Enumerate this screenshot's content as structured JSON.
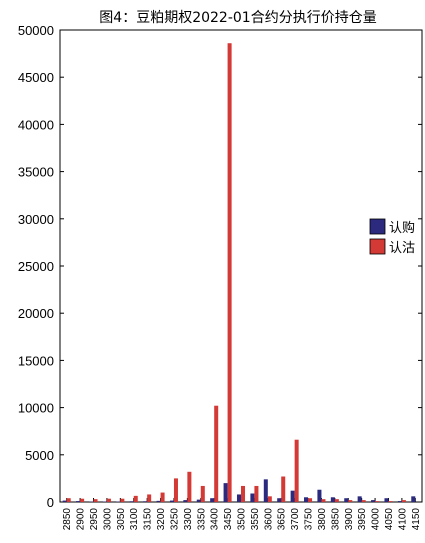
{
  "chart_data": {
    "type": "bar",
    "title": "图4：豆粕期权2022-01合约分执行价持仓量",
    "xlabel": "",
    "ylabel": "",
    "ylim": [
      0,
      50000
    ],
    "yticks": [
      0,
      5000,
      10000,
      15000,
      20000,
      25000,
      30000,
      35000,
      40000,
      45000,
      50000
    ],
    "grid": false,
    "legend_position": "right",
    "categories": [
      "2850",
      "2900",
      "2950",
      "3000",
      "3050",
      "3100",
      "3150",
      "3200",
      "3250",
      "3300",
      "3350",
      "3400",
      "3450",
      "3500",
      "3550",
      "3600",
      "3650",
      "3700",
      "3750",
      "3800",
      "3850",
      "3900",
      "3950",
      "4000",
      "4050",
      "4100",
      "4150"
    ],
    "series": [
      {
        "name": "认购",
        "color": "#2b2a7f",
        "values": [
          150,
          100,
          50,
          50,
          50,
          80,
          80,
          120,
          150,
          200,
          250,
          400,
          2000,
          800,
          900,
          2400,
          400,
          1200,
          500,
          1300,
          500,
          400,
          600,
          200,
          400,
          100,
          600
        ]
      },
      {
        "name": "认沽",
        "color": "#d33a36",
        "values": [
          400,
          350,
          300,
          350,
          350,
          650,
          800,
          1000,
          2500,
          3200,
          1700,
          10200,
          48600,
          1700,
          1700,
          600,
          2700,
          6600,
          400,
          300,
          300,
          200,
          200,
          100,
          100,
          200,
          0
        ]
      }
    ]
  }
}
